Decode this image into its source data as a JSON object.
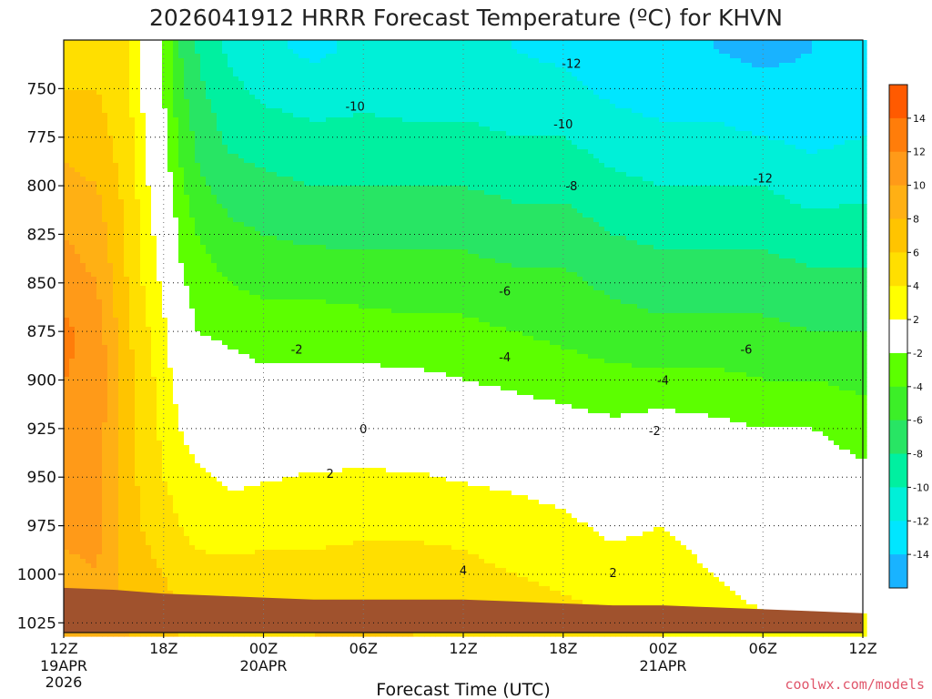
{
  "chart_data": {
    "type": "heatmap",
    "title": "2026041912 HRRR Forecast Temperature (ºC) for KHVN",
    "xlabel": "Forecast Time (UTC)",
    "ylabel": "",
    "x_range_hours": [
      0,
      48
    ],
    "y_range_hpa": [
      725,
      1030
    ],
    "y_ticks": [
      750,
      775,
      800,
      825,
      850,
      875,
      900,
      925,
      950,
      975,
      1000,
      1025
    ],
    "x_ticks": [
      {
        "hour": 0,
        "label": "12Z",
        "sub1": "19APR",
        "sub2": "2026"
      },
      {
        "hour": 6,
        "label": "18Z",
        "sub1": "",
        "sub2": ""
      },
      {
        "hour": 12,
        "label": "00Z",
        "sub1": "20APR",
        "sub2": ""
      },
      {
        "hour": 18,
        "label": "06Z",
        "sub1": "",
        "sub2": ""
      },
      {
        "hour": 24,
        "label": "12Z",
        "sub1": "",
        "sub2": ""
      },
      {
        "hour": 30,
        "label": "18Z",
        "sub1": "",
        "sub2": ""
      },
      {
        "hour": 36,
        "label": "00Z",
        "sub1": "21APR",
        "sub2": ""
      },
      {
        "hour": 42,
        "label": "06Z",
        "sub1": "",
        "sub2": ""
      },
      {
        "hour": 48,
        "label": "12Z",
        "sub1": "",
        "sub2": ""
      }
    ],
    "grid": true,
    "colorbar": {
      "ticks": [
        "14",
        "12",
        "10",
        "8",
        "6",
        "4",
        "2",
        "-2",
        "-4",
        "-6",
        "-8",
        "-10",
        "-12",
        "-14"
      ],
      "colors": [
        "#ff5a00",
        "#ff7d0a",
        "#ff9a18",
        "#ffb014",
        "#ffc400",
        "#ffdf00",
        "#ffff00",
        "#ffffff",
        "#5cff00",
        "#3cef28",
        "#28e564",
        "#00f0a0",
        "#00f0d8",
        "#00e6ff",
        "#19b3ff"
      ]
    },
    "temperature_profiles": {
      "levels_hpa": [
        1020,
        1000,
        975,
        950,
        925,
        900,
        875,
        850,
        825,
        800,
        775,
        750,
        730
      ],
      "series": [
        {
          "hour": 0,
          "values": [
            9,
            9.5,
            10.5,
            11,
            11.5,
            12,
            12.5,
            11,
            10,
            8.5,
            7.5,
            6,
            5
          ]
        },
        {
          "hour": 2,
          "values": [
            9,
            10,
            10.5,
            11,
            11,
            11.5,
            11,
            10,
            9,
            8,
            7,
            6,
            5
          ]
        },
        {
          "hour": 4,
          "values": [
            8,
            7,
            6.5,
            6.5,
            6.5,
            6.5,
            6,
            5.5,
            5.5,
            5,
            4.5,
            4,
            4
          ]
        },
        {
          "hour": 6,
          "values": [
            7,
            6,
            5,
            4,
            3.5,
            3,
            2.5,
            1.5,
            0.5,
            -0.5,
            -1.5,
            -2,
            -2
          ]
        },
        {
          "hour": 7,
          "values": [
            6,
            5,
            4,
            3,
            2,
            1,
            -0.5,
            -1.5,
            -2.5,
            -3.5,
            -4.5,
            -5.5,
            -6
          ]
        },
        {
          "hour": 8,
          "values": [
            5.5,
            4.5,
            3.5,
            2.5,
            1,
            -0.5,
            -2,
            -3,
            -4,
            -5.5,
            -6.5,
            -7.5,
            -8
          ]
        },
        {
          "hour": 10,
          "values": [
            5.5,
            4.5,
            3.2,
            1.5,
            0.5,
            -1,
            -2.5,
            -4,
            -5.5,
            -7,
            -8.5,
            -9.5,
            -10.5
          ]
        },
        {
          "hour": 12,
          "values": [
            5.5,
            4.5,
            3.5,
            1.8,
            0.5,
            -1.5,
            -3,
            -4.5,
            -6,
            -7.5,
            -9,
            -10.5,
            -11.5
          ]
        },
        {
          "hour": 15,
          "values": [
            6,
            4.5,
            3.5,
            2.2,
            0.5,
            -1.5,
            -3,
            -4.5,
            -6.5,
            -8,
            -9.5,
            -11,
            -12.5
          ]
        },
        {
          "hour": 18,
          "values": [
            6,
            5,
            3.5,
            2.3,
            0.5,
            -1.5,
            -3,
            -5,
            -6.5,
            -8,
            -9.5,
            -10.5,
            -11.5
          ]
        },
        {
          "hour": 21,
          "values": [
            6,
            5,
            3.5,
            2.2,
            0.5,
            -1.5,
            -3.5,
            -5,
            -6.5,
            -8,
            -9.5,
            -11,
            -12
          ]
        },
        {
          "hour": 24,
          "values": [
            5.5,
            4.5,
            3.5,
            1.8,
            0.2,
            -2,
            -3.5,
            -5,
            -6.5,
            -8,
            -9.5,
            -11,
            -12
          ]
        },
        {
          "hour": 27,
          "values": [
            5,
            4,
            3,
            1.5,
            -0.5,
            -2.5,
            -4,
            -5.5,
            -7,
            -8.5,
            -10,
            -11,
            -12
          ]
        },
        {
          "hour": 30,
          "values": [
            4.5,
            3.5,
            2.5,
            1,
            -1,
            -3,
            -4.5,
            -5.5,
            -7,
            -8.5,
            -10,
            -11.5,
            -12.5
          ]
        },
        {
          "hour": 33,
          "values": [
            4,
            3,
            1.5,
            0,
            -1.5,
            -3.5,
            -5,
            -6.5,
            -8,
            -9.5,
            -11,
            -12.5,
            -13.5
          ]
        },
        {
          "hour": 36,
          "values": [
            4,
            3,
            2,
            1,
            -1,
            -3.5,
            -5.5,
            -7,
            -8.5,
            -10,
            -11.5,
            -13,
            -14
          ]
        },
        {
          "hour": 39,
          "values": [
            3,
            2,
            1,
            0,
            -1.5,
            -3.5,
            -5.5,
            -7,
            -8.5,
            -10,
            -11.5,
            -13,
            -14
          ]
        },
        {
          "hour": 42,
          "values": [
            2,
            1,
            0.5,
            -0.5,
            -2,
            -4,
            -5.5,
            -7,
            -8.5,
            -10,
            -12,
            -13.5,
            -14.5
          ]
        },
        {
          "hour": 45,
          "values": [
            2,
            1,
            0.5,
            -0.5,
            -2,
            -4,
            -6,
            -7.5,
            -9,
            -11,
            -12.5,
            -13.5,
            -14
          ]
        },
        {
          "hour": 48,
          "values": [
            2,
            0.5,
            -0.5,
            -1.5,
            -3,
            -4.5,
            -6,
            -7.5,
            -9,
            -10.5,
            -12,
            -13,
            -13.5
          ]
        }
      ]
    },
    "contour_labels": [
      {
        "text": "-12",
        "hour": 30.5,
        "p": 737
      },
      {
        "text": "-10",
        "hour": 17.5,
        "p": 759
      },
      {
        "text": "-10",
        "hour": 30,
        "p": 768
      },
      {
        "text": "-8",
        "hour": 30.5,
        "p": 800
      },
      {
        "text": "-12",
        "hour": 42,
        "p": 796
      },
      {
        "text": "-6",
        "hour": 26.5,
        "p": 854
      },
      {
        "text": "-6",
        "hour": 41,
        "p": 884
      },
      {
        "text": "-4",
        "hour": 26.5,
        "p": 888
      },
      {
        "text": "-4",
        "hour": 36,
        "p": 900
      },
      {
        "text": "-2",
        "hour": 14,
        "p": 884
      },
      {
        "text": "-2",
        "hour": 35.5,
        "p": 926
      },
      {
        "text": "0",
        "hour": 18,
        "p": 925
      },
      {
        "text": "2",
        "hour": 16,
        "p": 948
      },
      {
        "text": "2",
        "hour": 33,
        "p": 999
      },
      {
        "text": "4",
        "hour": 24,
        "p": 998
      }
    ],
    "surface_pressure": {
      "hours": [
        0,
        3,
        6,
        9,
        12,
        15,
        18,
        21,
        24,
        27,
        30,
        33,
        36,
        39,
        42,
        45,
        48
      ],
      "values_hpa": [
        1007,
        1008,
        1010,
        1011,
        1012,
        1013,
        1013,
        1013,
        1013,
        1014,
        1015,
        1016,
        1016,
        1017,
        1018,
        1019,
        1020
      ]
    }
  },
  "credit": "coolwx.com/models"
}
